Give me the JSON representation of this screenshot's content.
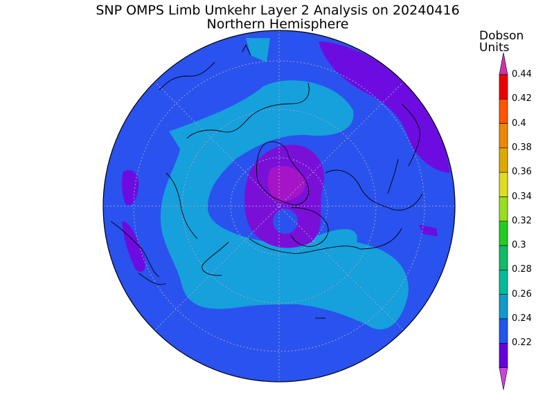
{
  "title": "SNP OMPS Limb Umkehr Layer 2 Analysis on 20240416",
  "subtitle": "Northern Hemisphere",
  "colorbar": {
    "units_line1": "Dobson",
    "units_line2": "Units",
    "ticks": [
      "0.44",
      "0.42",
      "0.4",
      "0.38",
      "0.36",
      "0.34",
      "0.32",
      "0.3",
      "0.28",
      "0.26",
      "0.24",
      "0.22"
    ],
    "colors": [
      "#cc33aa",
      "#ee0000",
      "#ff5500",
      "#ee8800",
      "#ddaa00",
      "#dddd22",
      "#99dd22",
      "#22cc22",
      "#11bb66",
      "#00bb99",
      "#1199cc",
      "#2255ee",
      "#6600dd",
      "#cc44dd"
    ]
  },
  "chart_data": {
    "type": "heatmap",
    "projection": "north-polar-stereographic",
    "value_range": [
      0.22,
      0.44
    ],
    "contour_interval": 0.02,
    "regions": [
      {
        "range": [
          0.24,
          0.26
        ],
        "location": "background, most of hemisphere"
      },
      {
        "range": [
          0.26,
          0.28
        ],
        "location": "broad belt over Arctic, Atlantic, North America"
      },
      {
        "range": [
          0.22,
          0.24
        ],
        "location": "polar vortex near Greenland/Canadian Arctic"
      },
      {
        "range": [
          0.22,
          0.24
        ],
        "location": "North Pacific / Alaska edge"
      }
    ],
    "grid": true
  }
}
